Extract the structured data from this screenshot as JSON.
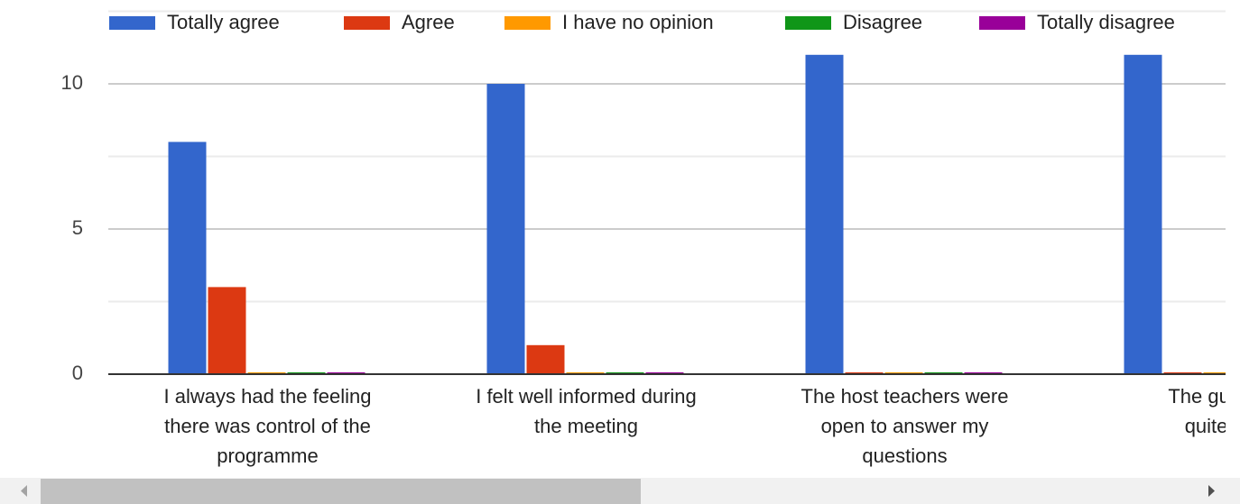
{
  "chart_data": {
    "type": "bar",
    "categories": [
      [
        "I always had the feeling",
        "there was control of the",
        "programme"
      ],
      [
        "I felt well informed during",
        "the meeting"
      ],
      [
        "The host teachers were",
        "open to answer my",
        "questions"
      ],
      [
        "The guide of",
        "quite pro"
      ]
    ],
    "series": [
      {
        "name": "Totally agree",
        "color": "#3366cc",
        "values": [
          8,
          10,
          11,
          11
        ]
      },
      {
        "name": "Agree",
        "color": "#dc3912",
        "values": [
          3,
          1,
          0,
          0
        ]
      },
      {
        "name": "I have no opinion",
        "color": "#ff9900",
        "values": [
          0,
          0,
          0,
          0
        ]
      },
      {
        "name": "Disagree",
        "color": "#109618",
        "values": [
          0,
          0,
          0,
          null
        ]
      },
      {
        "name": "Totally disagree",
        "color": "#990099",
        "values": [
          0,
          0,
          0,
          null
        ]
      }
    ],
    "ylim": [
      0,
      12.5
    ],
    "yticks": [
      0,
      5,
      10
    ],
    "minor_gridlines": [
      2.5,
      7.5
    ],
    "grid": true,
    "legend": "top"
  }
}
